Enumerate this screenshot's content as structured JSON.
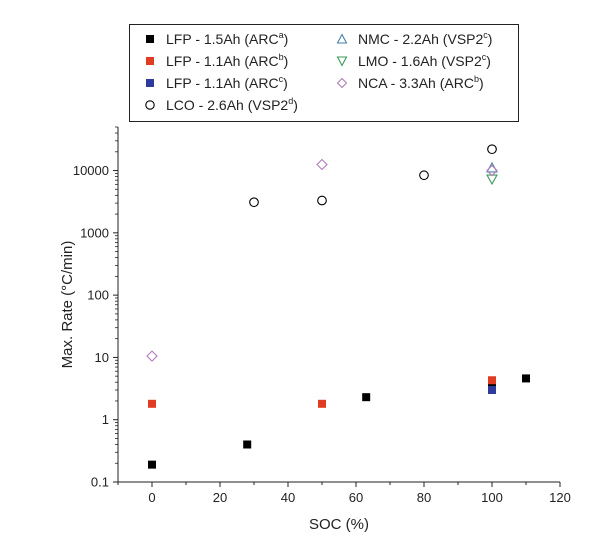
{
  "chart_data": {
    "type": "scatter",
    "xlabel": "SOC (%)",
    "ylabel": "Max. Rate (°C/min)",
    "xlim": [
      -10,
      120
    ],
    "ylim": [
      0.1,
      50000
    ],
    "yscale": "log",
    "x_ticks": [
      0,
      20,
      40,
      60,
      80,
      100,
      120
    ],
    "y_ticks": [
      0.1,
      1,
      10,
      100,
      1000,
      10000
    ],
    "y_tick_labels": [
      "0.1",
      "1",
      "10",
      "100",
      "1000",
      "10000"
    ],
    "grid": false,
    "legend_position": "top",
    "series": [
      {
        "name": "LFP - 1.5Ah",
        "source": "ARC",
        "sup": "a",
        "marker": "square",
        "filled": true,
        "color": "#000000",
        "points": [
          [
            0,
            0.19
          ],
          [
            28,
            0.4
          ],
          [
            63,
            2.3
          ],
          [
            100,
            3.6
          ],
          [
            110,
            4.6
          ]
        ]
      },
      {
        "name": "LFP - 1.1Ah",
        "source": "ARC",
        "sup": "b",
        "marker": "square",
        "filled": true,
        "color": "#e03c22",
        "points": [
          [
            0,
            1.8
          ],
          [
            50,
            1.8
          ],
          [
            100,
            4.3
          ]
        ]
      },
      {
        "name": "LFP - 1.1Ah",
        "source": "ARC",
        "sup": "c",
        "marker": "square",
        "filled": true,
        "color": "#2e3a9c",
        "points": [
          [
            100,
            3.0
          ]
        ]
      },
      {
        "name": "LCO - 2.6Ah",
        "source": "VSP2",
        "sup": "d",
        "marker": "circle",
        "filled": false,
        "color": "#000000",
        "points": [
          [
            30,
            3100
          ],
          [
            50,
            3300
          ],
          [
            80,
            8400
          ],
          [
            100,
            22000
          ]
        ]
      },
      {
        "name": "NMC - 2.2Ah",
        "source": "VSP2",
        "sup": "c",
        "marker": "triangle-up",
        "filled": false,
        "color": "#4a7fa8",
        "points": [
          [
            100,
            11000
          ]
        ]
      },
      {
        "name": "LMO - 1.6Ah",
        "source": "VSP2",
        "sup": "c",
        "marker": "triangle-down",
        "filled": false,
        "color": "#3a9a5a",
        "points": [
          [
            100,
            7300
          ]
        ]
      },
      {
        "name": "NCA - 3.3Ah",
        "source": "ARC",
        "sup": "b",
        "marker": "diamond",
        "filled": false,
        "color": "#b07cb8",
        "points": [
          [
            0,
            10.5
          ],
          [
            50,
            12500
          ],
          [
            100,
            10000
          ]
        ]
      }
    ]
  }
}
